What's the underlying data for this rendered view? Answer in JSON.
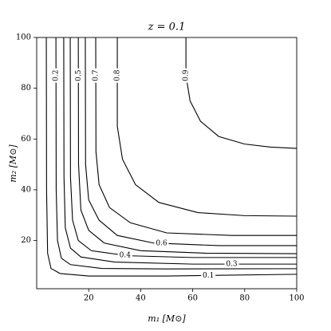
{
  "chart_data": {
    "type": "contour",
    "title": "z = 0.1",
    "x_label": "m₁ [M⊙]",
    "y_label": "m₂ [M⊙]",
    "xlim": [
      0,
      100
    ],
    "ylim": [
      1,
      100
    ],
    "xticks": [
      20,
      40,
      60,
      80,
      100
    ],
    "yticks": [
      20,
      40,
      60,
      80,
      100
    ],
    "color": "#000000",
    "contours": [
      {
        "level": 0.1,
        "x": [
          3.7,
          3.8,
          4.2,
          5.5,
          9,
          20,
          50,
          100
        ],
        "y": [
          100,
          40,
          15,
          9,
          7,
          6,
          6,
          6.7
        ]
      },
      {
        "level": 0.2,
        "x": [
          7.4,
          7.5,
          8,
          9.5,
          13,
          25,
          50,
          100
        ],
        "y": [
          100,
          40,
          20,
          13,
          10.5,
          9,
          8.8,
          8.9
        ]
      },
      {
        "level": 0.3,
        "x": [
          10.4,
          10.5,
          11,
          13,
          17,
          30,
          60,
          100
        ],
        "y": [
          100,
          45,
          25,
          17,
          13.5,
          11.5,
          10.7,
          10.7
        ]
      },
      {
        "level": 0.4,
        "x": [
          12.9,
          13,
          13.8,
          16,
          21,
          35,
          60,
          100
        ],
        "y": [
          100,
          45,
          28,
          20,
          16,
          14,
          13.3,
          13.3
        ]
      },
      {
        "level": 0.5,
        "x": [
          16,
          16.1,
          17,
          20,
          26,
          40,
          65,
          100
        ],
        "y": [
          100,
          50,
          32,
          24,
          19,
          16,
          15,
          14.8
        ]
      },
      {
        "level": 0.6,
        "x": [
          18.7,
          18.8,
          20,
          24,
          31,
          45,
          70,
          100
        ],
        "y": [
          100,
          50,
          36,
          28,
          22,
          19,
          18,
          18
        ]
      },
      {
        "level": 0.7,
        "x": [
          22.7,
          22.8,
          24,
          28,
          36,
          50,
          75,
          100
        ],
        "y": [
          100,
          55,
          42,
          33,
          27,
          23,
          22,
          22
        ]
      },
      {
        "level": 0.8,
        "x": [
          31,
          31,
          33,
          38,
          47,
          62,
          80,
          100
        ],
        "y": [
          100,
          65,
          52,
          42,
          35,
          31,
          29.8,
          29.6
        ]
      },
      {
        "level": 0.9,
        "x": [
          57.4,
          57.4,
          59,
          63,
          70,
          80,
          90,
          100
        ],
        "y": [
          100,
          85,
          75,
          67,
          61,
          58,
          56.8,
          56.3
        ]
      }
    ]
  }
}
